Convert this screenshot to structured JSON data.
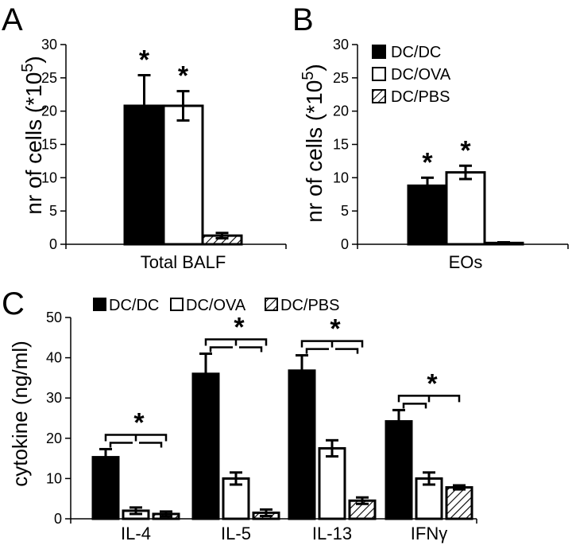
{
  "colors": {
    "DC/DC": "#000000",
    "DC/OVA": "#ffffff",
    "DC/PBS": "hatch"
  },
  "legend": {
    "items": [
      "DC/DC",
      "DC/OVA",
      "DC/PBS"
    ]
  },
  "chart_data": [
    {
      "panel": "A",
      "type": "bar",
      "categories": [
        "Total BALF"
      ],
      "ylabel": "nr of cells (*10^5)",
      "ylim": [
        0,
        30
      ],
      "yticks": [
        0,
        5,
        10,
        15,
        20,
        25,
        30
      ],
      "series": [
        {
          "name": "DC/DC",
          "values": [
            20.8
          ],
          "errors": [
            4.6
          ]
        },
        {
          "name": "DC/OVA",
          "values": [
            20.8
          ],
          "errors": [
            2.2
          ]
        },
        {
          "name": "DC/PBS",
          "values": [
            1.3
          ],
          "errors": [
            0.4
          ]
        }
      ],
      "significance": [
        "*",
        "*",
        ""
      ]
    },
    {
      "panel": "B",
      "type": "bar",
      "categories": [
        "EOs"
      ],
      "ylabel": "nr of cells (*10^5)",
      "ylim": [
        0,
        30
      ],
      "yticks": [
        0,
        5,
        10,
        15,
        20,
        25,
        30
      ],
      "legend_position": "top-left",
      "series": [
        {
          "name": "DC/DC",
          "values": [
            8.8
          ],
          "errors": [
            1.2
          ]
        },
        {
          "name": "DC/OVA",
          "values": [
            10.8
          ],
          "errors": [
            1.0
          ]
        },
        {
          "name": "DC/PBS",
          "values": [
            0.2
          ],
          "errors": [
            0.1
          ]
        }
      ],
      "significance": [
        "*",
        "*",
        ""
      ]
    },
    {
      "panel": "C",
      "type": "bar",
      "categories": [
        "IL-4",
        "IL-5",
        "IL-13",
        "IFNγ"
      ],
      "ylabel": "cytokine (ng/ml)",
      "ylim": [
        0,
        50
      ],
      "yticks": [
        0,
        10,
        20,
        30,
        40,
        50
      ],
      "legend_position": "top",
      "series": [
        {
          "name": "DC/DC",
          "values": [
            15.3,
            36.0,
            36.8,
            24.2
          ],
          "errors": [
            2.0,
            5.0,
            3.8,
            2.8
          ]
        },
        {
          "name": "DC/OVA",
          "values": [
            2.0,
            10.0,
            17.5,
            10.0
          ],
          "errors": [
            0.8,
            1.5,
            2.0,
            1.5
          ]
        },
        {
          "name": "DC/PBS",
          "values": [
            1.2,
            1.5,
            4.5,
            7.8
          ],
          "errors": [
            0.6,
            0.8,
            0.8,
            0.5
          ]
        }
      ],
      "significance": [
        "*",
        "*",
        "*",
        "*"
      ]
    }
  ]
}
